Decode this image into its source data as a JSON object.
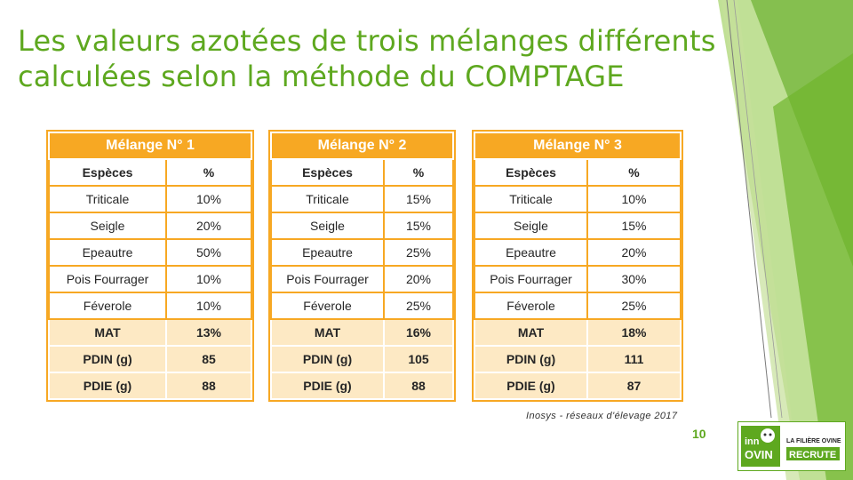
{
  "slide": {
    "title_line1": "Les valeurs azotées de trois mélanges différents",
    "title_line2": "calculées selon la méthode du COMPTAGE",
    "source": "Inosys - réseaux d'élevage 2017",
    "page_number": "10"
  },
  "tables": [
    {
      "title": "Mélange N° 1",
      "col1": "Espèces",
      "col2": "%",
      "rows": [
        [
          "Triticale",
          "10%"
        ],
        [
          "Seigle",
          "20%"
        ],
        [
          "Epeautre",
          "50%"
        ],
        [
          "Pois Fourrager",
          "10%"
        ],
        [
          "Féverole",
          "10%"
        ]
      ],
      "summary": [
        [
          "MAT",
          "13%"
        ],
        [
          "PDIN (g)",
          "85"
        ],
        [
          "PDIE (g)",
          "88"
        ]
      ]
    },
    {
      "title": "Mélange N° 2",
      "col1": "Espèces",
      "col2": "%",
      "rows": [
        [
          "Triticale",
          "15%"
        ],
        [
          "Seigle",
          "15%"
        ],
        [
          "Epeautre",
          "25%"
        ],
        [
          "Pois Fourrager",
          "20%"
        ],
        [
          "Féverole",
          "25%"
        ]
      ],
      "summary": [
        [
          "MAT",
          "16%"
        ],
        [
          "PDIN (g)",
          "105"
        ],
        [
          "PDIE (g)",
          "88"
        ]
      ]
    },
    {
      "title": "Mélange N° 3",
      "col1": "Espèces",
      "col2": "%",
      "rows": [
        [
          "Triticale",
          "10%"
        ],
        [
          "Seigle",
          "15%"
        ],
        [
          "Epeautre",
          "20%"
        ],
        [
          "Pois Fourrager",
          "30%"
        ],
        [
          "Féverole",
          "25%"
        ]
      ],
      "summary": [
        [
          "MAT",
          "18%"
        ],
        [
          "PDIN (g)",
          "111"
        ],
        [
          "PDIE (g)",
          "87"
        ]
      ]
    }
  ],
  "logo": {
    "left_text_top": "inn",
    "left_text_bottom": "OVIN",
    "right_text_top": "LA FILIÈRE OVINE",
    "right_text_bottom": "RECRUTE"
  },
  "colors": {
    "accent_green": "#5ea81f",
    "table_orange": "#f7a823",
    "table_fill": "#fde9c4"
  }
}
